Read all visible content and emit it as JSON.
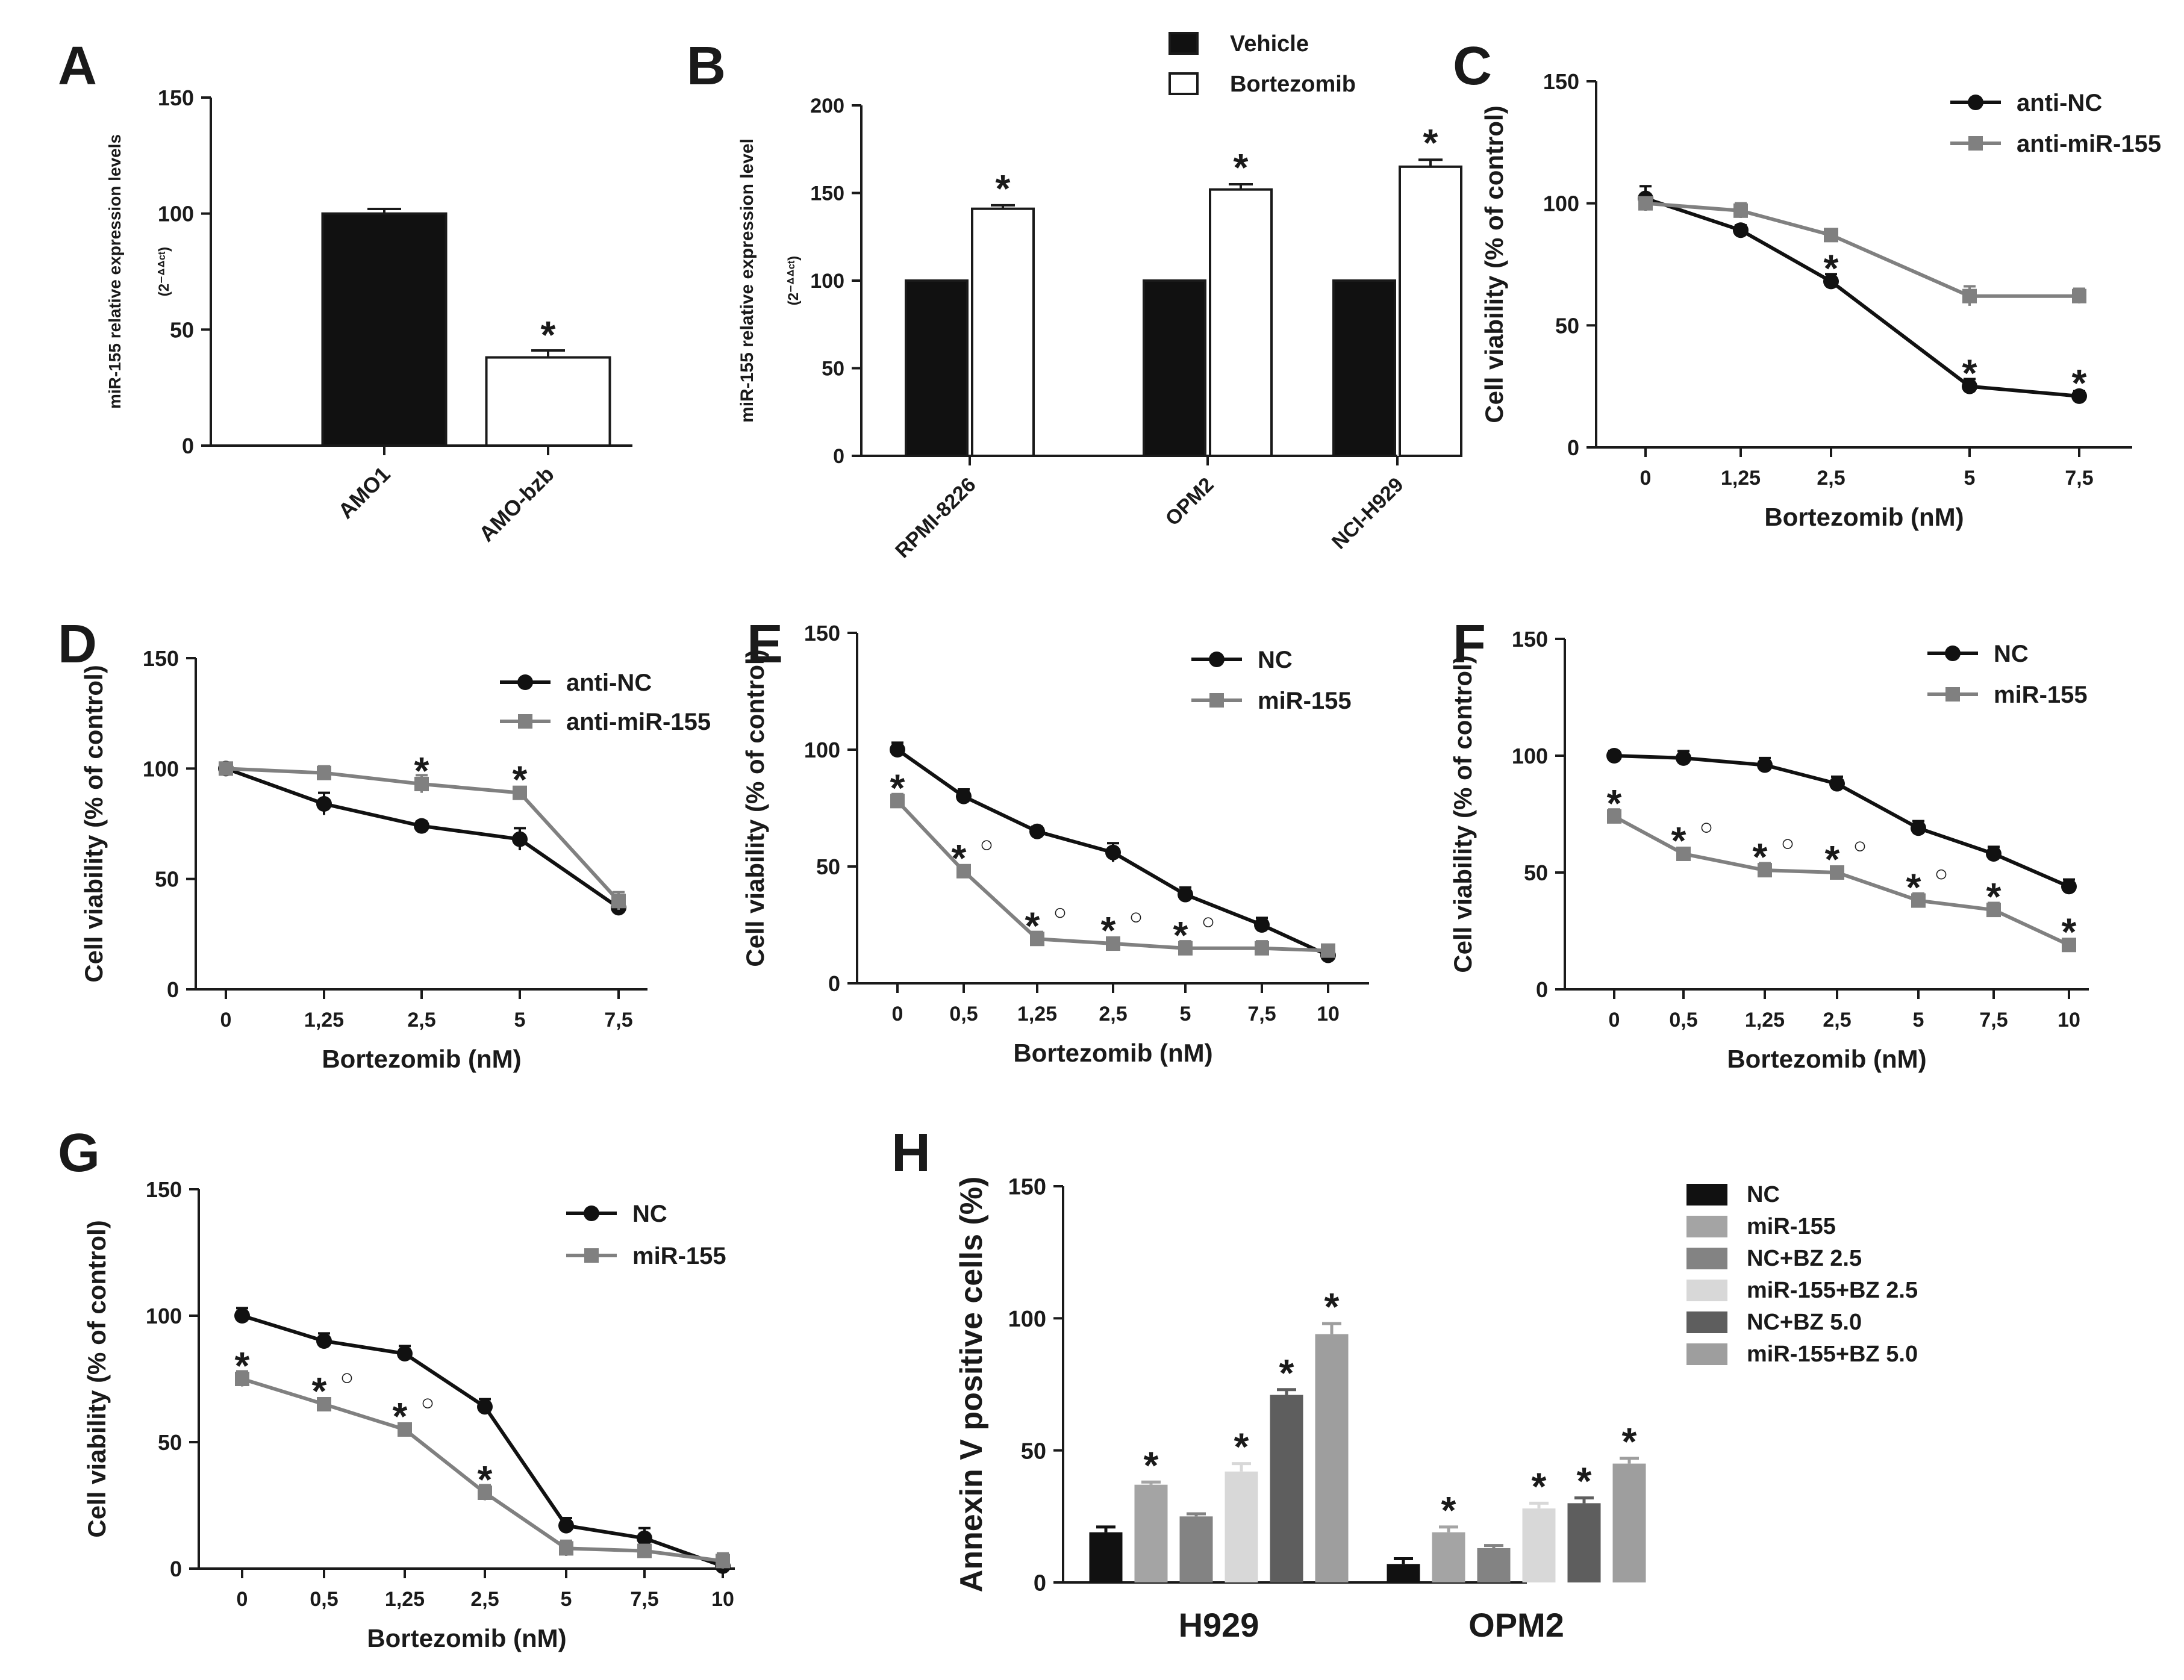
{
  "colors": {
    "black": "#111111",
    "gray": "#808080",
    "white": "#ffffff",
    "h_nc": "#111111",
    "h_mir": "#a4a4a4",
    "h_ncbz25": "#838383",
    "h_mirbz25": "#d8d8d8",
    "h_ncbz50": "#5e5e5e",
    "h_mirbz50": "#9e9e9e"
  },
  "chart_data": [
    {
      "id": "A",
      "panel_letter": "A",
      "type": "bar",
      "ylabel": "miR-155 relative expression levels",
      "ylabel_sub": "(2⁻ᐞᐞᶜᵗ)",
      "ylim": [
        0,
        150
      ],
      "yticks": [
        "0",
        "50",
        "100",
        "150"
      ],
      "categories": [
        "AMO1",
        "AMO-bzb"
      ],
      "values": [
        100,
        38
      ],
      "errors": [
        2,
        3
      ],
      "fills": [
        "black",
        "white"
      ],
      "stars": [
        false,
        true
      ],
      "star_symbol": "*"
    },
    {
      "id": "B",
      "panel_letter": "B",
      "type": "bar",
      "ylabel": "miR-155 relative expression level",
      "ylabel_sub": "(2⁻ᐞᐞᶜᵗ)",
      "ylim": [
        0,
        200
      ],
      "yticks": [
        "0",
        "50",
        "100",
        "150",
        "200"
      ],
      "categories": [
        "RPMI-8226",
        "OPM2",
        "NCI-H929"
      ],
      "series": [
        {
          "name": "Vehicle",
          "fill": "black",
          "values": [
            100,
            100,
            100
          ],
          "errors": [
            0,
            0,
            0
          ],
          "stars": [
            false,
            false,
            false
          ]
        },
        {
          "name": "Bortezomib",
          "fill": "white",
          "values": [
            141,
            152,
            165
          ],
          "errors": [
            2,
            3,
            4
          ],
          "stars": [
            true,
            true,
            true
          ]
        }
      ],
      "star_symbol": "*"
    },
    {
      "id": "C",
      "panel_letter": "C",
      "type": "line",
      "xlabel": "Bortezomib (nM)",
      "ylabel": "Cell viability (% of control)",
      "ylim": [
        0,
        150
      ],
      "yticks": [
        "0",
        "50",
        "100",
        "150"
      ],
      "x": [
        "0",
        "1,25",
        "2,5",
        "5",
        "7,5"
      ],
      "series": [
        {
          "name": "anti-NC",
          "color": "black",
          "marker": "circle",
          "values": [
            102,
            89,
            68,
            25,
            21
          ],
          "errors": [
            5,
            2,
            3,
            3,
            2
          ]
        },
        {
          "name": "anti-miR-155",
          "color": "gray",
          "marker": "square",
          "values": [
            100,
            97,
            87,
            62,
            62
          ],
          "errors": [
            2,
            3,
            2,
            4,
            3
          ]
        }
      ],
      "annotations": [
        {
          "series": 0,
          "index": 2,
          "text": "*"
        },
        {
          "series": 0,
          "index": 3,
          "text": "*"
        },
        {
          "series": 0,
          "index": 4,
          "text": "*"
        }
      ]
    },
    {
      "id": "D",
      "panel_letter": "D",
      "type": "line",
      "xlabel": "Bortezomib (nM)",
      "ylabel": "Cell viability (% of control)",
      "ylim": [
        0,
        150
      ],
      "yticks": [
        "0",
        "50",
        "100",
        "150"
      ],
      "x": [
        "0",
        "1,25",
        "2,5",
        "5",
        "7,5"
      ],
      "series": [
        {
          "name": "anti-NC",
          "color": "black",
          "marker": "circle",
          "values": [
            100,
            84,
            74,
            68,
            37
          ],
          "errors": [
            2,
            5,
            2,
            5,
            3
          ]
        },
        {
          "name": "anti-miR-155",
          "color": "gray",
          "marker": "square",
          "values": [
            100,
            98,
            93,
            89,
            40
          ],
          "errors": [
            2,
            3,
            4,
            2,
            4
          ]
        }
      ],
      "annotations": [
        {
          "series": 1,
          "index": 2,
          "text": "*"
        },
        {
          "series": 1,
          "index": 3,
          "text": "*"
        }
      ]
    },
    {
      "id": "E",
      "panel_letter": "E",
      "type": "line",
      "xlabel": "Bortezomib (nM)",
      "ylabel": "Cell viability (% of control)",
      "ylim": [
        0,
        150
      ],
      "yticks": [
        "0",
        "50",
        "100",
        "150"
      ],
      "x": [
        "0",
        "0,5",
        "1,25",
        "2,5",
        "5",
        "7,5",
        "10"
      ],
      "series": [
        {
          "name": "NC",
          "color": "black",
          "marker": "circle",
          "values": [
            100,
            80,
            65,
            56,
            38,
            25,
            12
          ],
          "errors": [
            3,
            3,
            2,
            4,
            3,
            3,
            3
          ]
        },
        {
          "name": "miR-155",
          "color": "gray",
          "marker": "square",
          "values": [
            78,
            48,
            19,
            17,
            15,
            15,
            14
          ],
          "errors": [
            3,
            2,
            3,
            2,
            3,
            3,
            2
          ]
        }
      ],
      "annotations": [
        {
          "series": 1,
          "index": 0,
          "text": "*"
        },
        {
          "series": 1,
          "index": 1,
          "text": "*○"
        },
        {
          "series": 1,
          "index": 2,
          "text": "*○"
        },
        {
          "series": 1,
          "index": 3,
          "text": "*○"
        },
        {
          "series": 1,
          "index": 4,
          "text": "*○"
        }
      ]
    },
    {
      "id": "F",
      "panel_letter": "F",
      "type": "line",
      "xlabel": "Bortezomib (nM)",
      "ylabel": "Cell viability (% of control)",
      "ylim": [
        0,
        150
      ],
      "yticks": [
        "0",
        "50",
        "100",
        "150"
      ],
      "x": [
        "0",
        "0,5",
        "1,25",
        "2,5",
        "5",
        "7,5",
        "10"
      ],
      "series": [
        {
          "name": "NC",
          "color": "black",
          "marker": "circle",
          "values": [
            100,
            99,
            96,
            88,
            69,
            58,
            44
          ],
          "errors": [
            2,
            3,
            3,
            3,
            3,
            3,
            3
          ]
        },
        {
          "name": "miR-155",
          "color": "gray",
          "marker": "square",
          "values": [
            74,
            58,
            51,
            50,
            38,
            34,
            19
          ],
          "errors": [
            3,
            2,
            3,
            2,
            3,
            3,
            2
          ]
        }
      ],
      "annotations": [
        {
          "series": 1,
          "index": 0,
          "text": "*"
        },
        {
          "series": 1,
          "index": 1,
          "text": "*○"
        },
        {
          "series": 1,
          "index": 2,
          "text": "*○"
        },
        {
          "series": 1,
          "index": 3,
          "text": "*○"
        },
        {
          "series": 1,
          "index": 4,
          "text": "*○"
        },
        {
          "series": 1,
          "index": 5,
          "text": "*"
        },
        {
          "series": 1,
          "index": 6,
          "text": "*"
        }
      ]
    },
    {
      "id": "G",
      "panel_letter": "G",
      "type": "line",
      "xlabel": "Bortezomib (nM)",
      "ylabel": "Cell viability (% of control)",
      "ylim": [
        0,
        150
      ],
      "yticks": [
        "0",
        "50",
        "100",
        "150"
      ],
      "x": [
        "0",
        "0,5",
        "1,25",
        "2,5",
        "5",
        "7,5",
        "10"
      ],
      "series": [
        {
          "name": "NC",
          "color": "black",
          "marker": "circle",
          "values": [
            100,
            90,
            85,
            64,
            17,
            12,
            1
          ],
          "errors": [
            3,
            3,
            3,
            3,
            3,
            4,
            3
          ]
        },
        {
          "name": "miR-155",
          "color": "gray",
          "marker": "square",
          "values": [
            75,
            65,
            55,
            30,
            8,
            7,
            3
          ],
          "errors": [
            3,
            2,
            2,
            3,
            3,
            2,
            3
          ]
        }
      ],
      "annotations": [
        {
          "series": 1,
          "index": 0,
          "text": "*"
        },
        {
          "series": 1,
          "index": 1,
          "text": "*○"
        },
        {
          "series": 1,
          "index": 2,
          "text": "*○"
        },
        {
          "series": 1,
          "index": 3,
          "text": "*"
        }
      ]
    },
    {
      "id": "H",
      "panel_letter": "H",
      "type": "bar",
      "ylabel": "Annexin V positive cells (%)",
      "ylim": [
        0,
        150
      ],
      "yticks": [
        "0",
        "50",
        "100",
        "150"
      ],
      "categories": [
        "H929",
        "OPM2"
      ],
      "series": [
        {
          "name": "NC",
          "color": "h_nc",
          "values": [
            19,
            7
          ],
          "errors": [
            2,
            2
          ],
          "stars": [
            false,
            false
          ]
        },
        {
          "name": "miR-155",
          "color": "h_mir",
          "values": [
            37,
            19
          ],
          "errors": [
            1,
            2
          ],
          "stars": [
            true,
            true
          ]
        },
        {
          "name": "NC+BZ 2.5",
          "color": "h_ncbz25",
          "values": [
            25,
            13
          ],
          "errors": [
            1,
            1
          ],
          "stars": [
            false,
            false
          ]
        },
        {
          "name": "miR-155+BZ 2.5",
          "color": "h_mirbz25",
          "values": [
            42,
            28
          ],
          "errors": [
            3,
            2
          ],
          "stars": [
            true,
            true
          ]
        },
        {
          "name": "NC+BZ 5.0",
          "color": "h_ncbz50",
          "values": [
            71,
            30
          ],
          "errors": [
            2,
            2
          ],
          "stars": [
            true,
            true
          ]
        },
        {
          "name": "miR-155+BZ 5.0",
          "color": "h_mirbz50",
          "values": [
            94,
            45
          ],
          "errors": [
            4,
            2
          ],
          "stars": [
            true,
            true
          ]
        }
      ],
      "star_symbol": "*"
    }
  ]
}
